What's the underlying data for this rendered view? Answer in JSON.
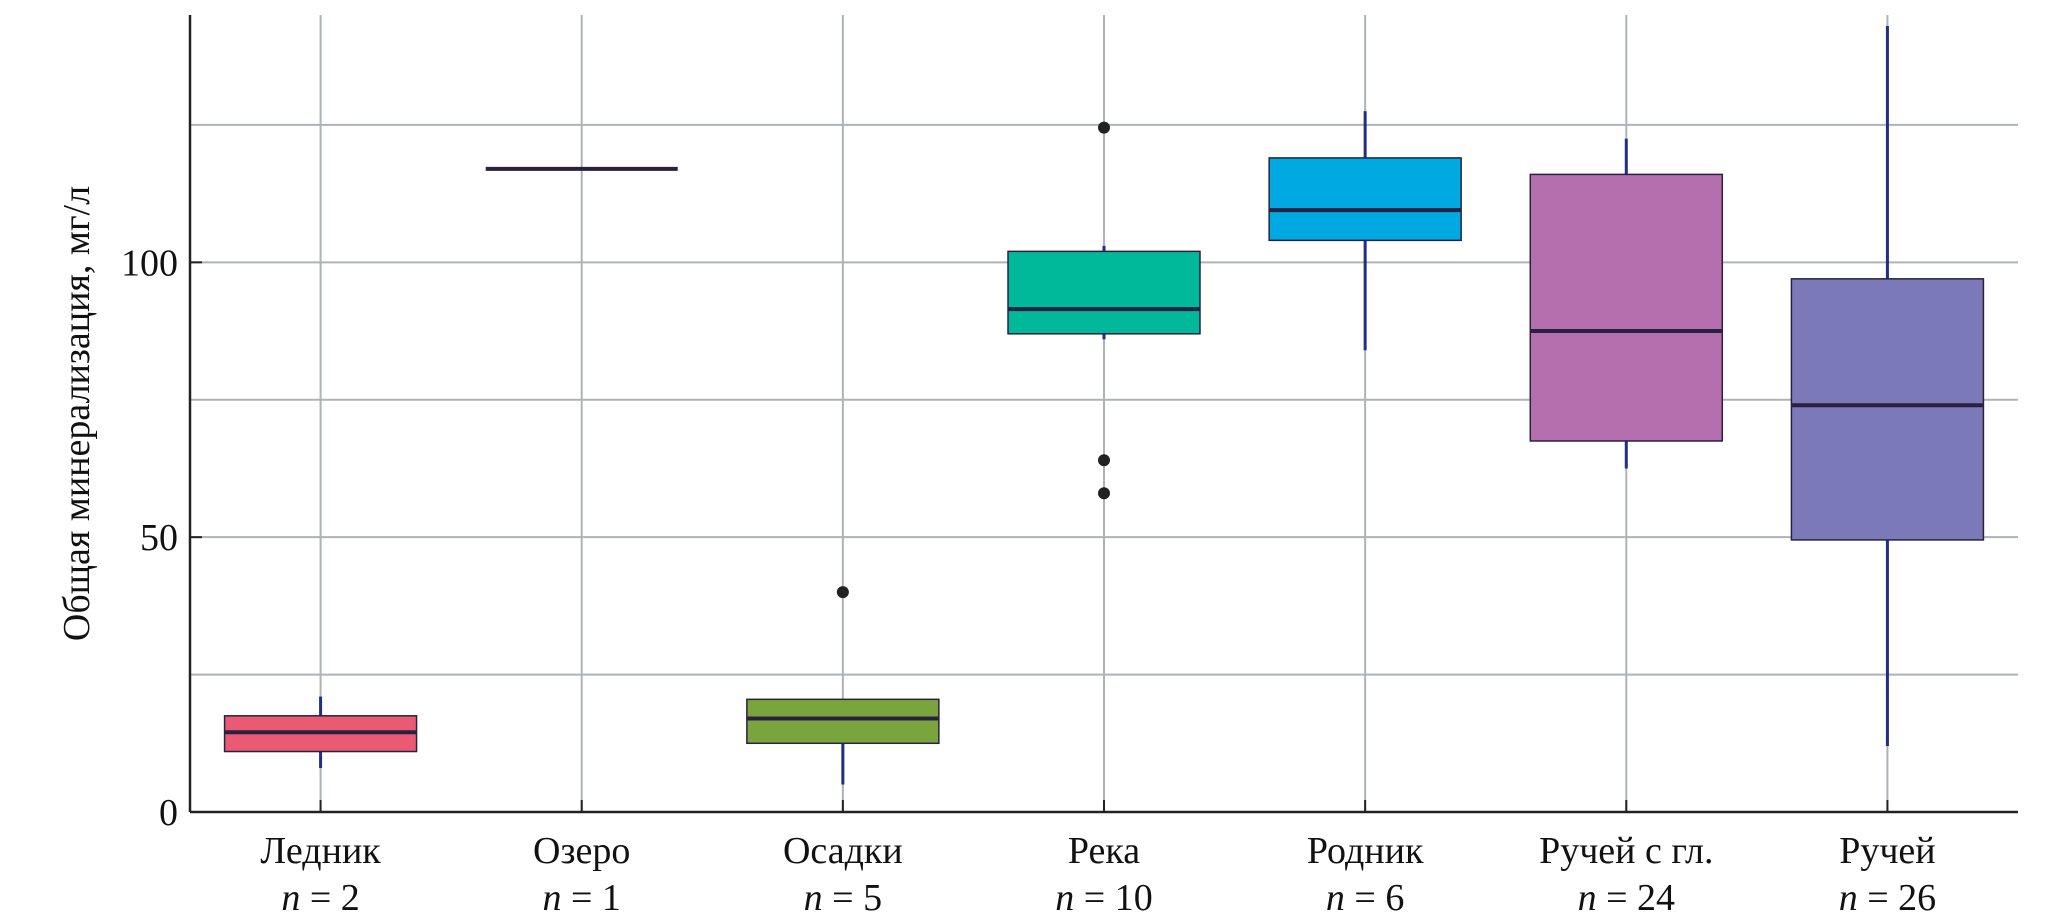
{
  "chart_data": {
    "type": "box",
    "title": "",
    "xlabel": "",
    "ylabel": "Общая минерализация, мг/л",
    "ylim": [
      0,
      145
    ],
    "grid": true,
    "y_ticks": [
      0,
      50,
      100
    ],
    "y_tick_labels": [
      "0",
      "50",
      "100"
    ],
    "y_gridlines": [
      25,
      50,
      75,
      100,
      125
    ],
    "n_prefix": "n",
    "n_operator": "=",
    "colors": {
      "grid": "#aeb3b7",
      "axis": "#222222",
      "median": "#2a2140",
      "whisker": "#1f2f85",
      "outlier": "#222222"
    },
    "categories": [
      {
        "name": "Ледник",
        "n": "2",
        "color": "#ea5b73",
        "q1": 11,
        "median": 14.5,
        "q3": 17.5,
        "whisker_low": 8,
        "whisker_high": 21,
        "outliers": []
      },
      {
        "name": "Озеро",
        "n": "1",
        "color": "#2a2140",
        "q1": 117,
        "median": 117,
        "q3": 117,
        "whisker_low": 117,
        "whisker_high": 117,
        "outliers": []
      },
      {
        "name": "Осадки",
        "n": "5",
        "color": "#79a53c",
        "q1": 12.5,
        "median": 17,
        "q3": 20.5,
        "whisker_low": 5,
        "whisker_high": 20.5,
        "outliers": [
          40
        ]
      },
      {
        "name": "Река",
        "n": "10",
        "color": "#00b89a",
        "q1": 87,
        "median": 91.5,
        "q3": 102,
        "whisker_low": 86,
        "whisker_high": 103,
        "outliers": [
          124.5,
          64,
          58
        ]
      },
      {
        "name": "Родник",
        "n": "6",
        "color": "#00a9e2",
        "q1": 104,
        "median": 109.5,
        "q3": 119,
        "whisker_low": 84,
        "whisker_high": 127.5,
        "outliers": []
      },
      {
        "name": "Ручей с гл.",
        "n": "24",
        "color": "#b66fae",
        "q1": 67.5,
        "median": 87.5,
        "q3": 116,
        "whisker_low": 62.5,
        "whisker_high": 122.5,
        "outliers": []
      },
      {
        "name": "Ручей",
        "n": "26",
        "color": "#7c79b8",
        "q1": 49.5,
        "median": 74,
        "q3": 97,
        "whisker_low": 12,
        "whisker_high": 143,
        "outliers": []
      }
    ]
  }
}
